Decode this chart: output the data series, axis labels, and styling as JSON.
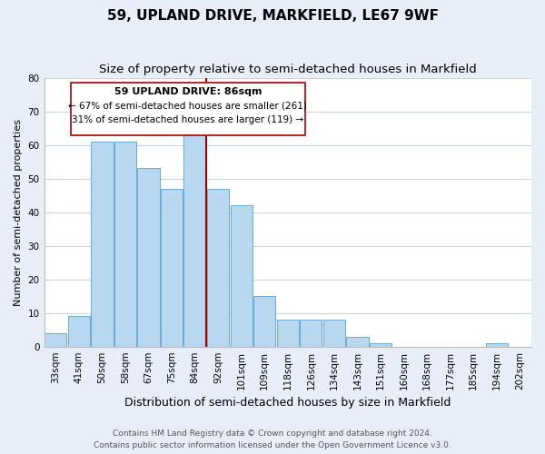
{
  "title": "59, UPLAND DRIVE, MARKFIELD, LE67 9WF",
  "subtitle": "Size of property relative to semi-detached houses in Markfield",
  "xlabel": "Distribution of semi-detached houses by size in Markfield",
  "ylabel": "Number of semi-detached properties",
  "categories": [
    "33sqm",
    "41sqm",
    "50sqm",
    "58sqm",
    "67sqm",
    "75sqm",
    "84sqm",
    "92sqm",
    "101sqm",
    "109sqm",
    "118sqm",
    "126sqm",
    "134sqm",
    "143sqm",
    "151sqm",
    "160sqm",
    "168sqm",
    "177sqm",
    "185sqm",
    "194sqm",
    "202sqm"
  ],
  "values": [
    4,
    9,
    61,
    61,
    53,
    47,
    64,
    47,
    42,
    15,
    8,
    8,
    8,
    3,
    1,
    0,
    0,
    0,
    0,
    1,
    0
  ],
  "bar_color": "#b8d8f0",
  "bar_edge_color": "#6aaad4",
  "highlight_bar_index": 6,
  "highlight_line_color": "#aa0000",
  "ylim": [
    0,
    80
  ],
  "yticks": [
    0,
    10,
    20,
    30,
    40,
    50,
    60,
    70,
    80
  ],
  "annotation_title": "59 UPLAND DRIVE: 86sqm",
  "annotation_line1": "← 67% of semi-detached houses are smaller (261)",
  "annotation_line2": "31% of semi-detached houses are larger (119) →",
  "annotation_box_color": "#ffffff",
  "annotation_box_edge": "#aa0000",
  "footer_line1": "Contains HM Land Registry data © Crown copyright and database right 2024.",
  "footer_line2": "Contains public sector information licensed under the Open Government Licence v3.0.",
  "background_color": "#e8eef8",
  "plot_bg_color": "#ffffff",
  "grid_color": "#c8d4e8",
  "title_fontsize": 11,
  "subtitle_fontsize": 9.5,
  "xlabel_fontsize": 9,
  "ylabel_fontsize": 8,
  "tick_fontsize": 7.5,
  "footer_fontsize": 6.5,
  "ann_title_fontsize": 8,
  "ann_text_fontsize": 7.5
}
